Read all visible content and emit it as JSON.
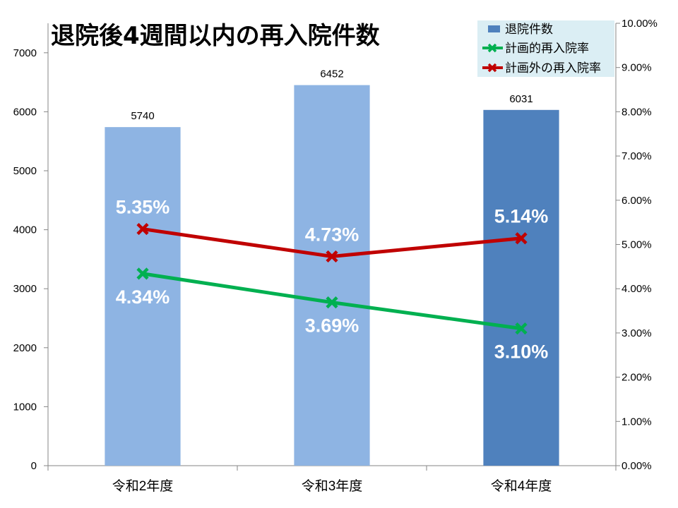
{
  "chart_data": {
    "type": "bar",
    "title": "退院後4週間以内の再入院件数",
    "categories": [
      "令和2年度",
      "令和3年度",
      "令和4年度"
    ],
    "series": [
      {
        "name": "退院件数",
        "type": "bar",
        "axis": "left",
        "values": [
          5740,
          6452,
          6031
        ],
        "data_labels": [
          "5740",
          "6452",
          "6031"
        ],
        "color": "#4f81bd",
        "bar_colors": [
          "#8eb4e3",
          "#8eb4e3",
          "#4f81bd"
        ]
      },
      {
        "name": "計画的再入院率",
        "type": "line",
        "axis": "right",
        "values": [
          4.34,
          3.69,
          3.1
        ],
        "data_labels": [
          "4.34%",
          "3.69%",
          "3.10%"
        ],
        "color": "#00b050",
        "marker": "x",
        "label_position": "below"
      },
      {
        "name": "計画外の再入院率",
        "type": "line",
        "axis": "right",
        "values": [
          5.35,
          4.73,
          5.14
        ],
        "data_labels": [
          "5.35%",
          "4.73%",
          "5.14%"
        ],
        "color": "#c00000",
        "marker": "x",
        "label_position": "above"
      }
    ],
    "y_left": {
      "ylim": [
        0,
        7500
      ],
      "ticks": [
        0,
        1000,
        2000,
        3000,
        4000,
        5000,
        6000,
        7000
      ],
      "tick_labels": [
        "0",
        "1000",
        "2000",
        "3000",
        "4000",
        "5000",
        "6000",
        "7000"
      ]
    },
    "y_right": {
      "ylim": [
        0,
        10
      ],
      "ticks": [
        0,
        1,
        2,
        3,
        4,
        5,
        6,
        7,
        8,
        9,
        10
      ],
      "tick_labels": [
        "0.00%",
        "1.00%",
        "2.00%",
        "3.00%",
        "4.00%",
        "5.00%",
        "6.00%",
        "7.00%",
        "8.00%",
        "9.00%",
        "10.00%"
      ]
    },
    "grid": false,
    "legend": {
      "position": "top-right",
      "background": "#dbeef4"
    },
    "colors": {
      "axis": "#868686",
      "data_label_text": "#ffffff",
      "text": "#000000"
    }
  }
}
